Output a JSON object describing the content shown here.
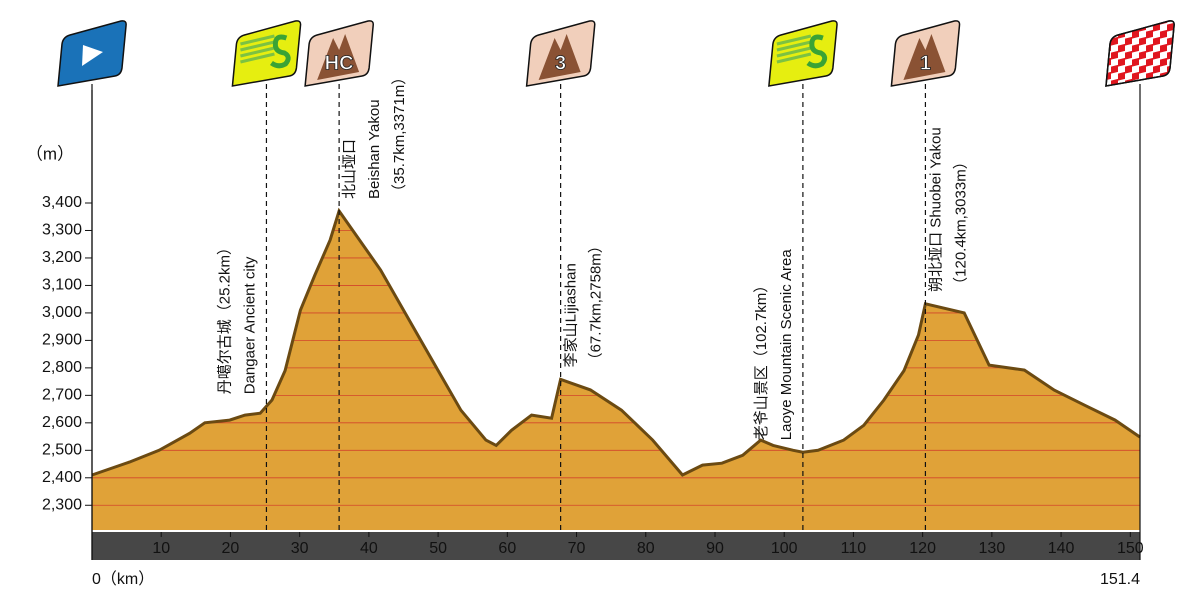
{
  "chart_data": {
    "type": "area",
    "y_label": "（m）",
    "color": "#e0a238",
    "line_color": "#6b4a12",
    "grid_color": "#d2452a",
    "xlim": [
      0,
      151.4
    ],
    "xticks": [
      {
        "value": 0,
        "label": "0（km）"
      },
      10,
      20,
      30,
      40,
      50,
      60,
      70,
      80,
      90,
      100,
      110,
      120,
      130,
      140,
      150,
      151.4
    ],
    "ylim": [
      2210,
      3400
    ],
    "yticks": [
      {
        "value": 2300,
        "label": "2,300"
      },
      {
        "value": 2400,
        "label": "2,400"
      },
      {
        "value": 2500,
        "label": "2,500"
      },
      {
        "value": 2600,
        "label": "2,600"
      },
      {
        "value": 2700,
        "label": "2,700"
      },
      {
        "value": 2800,
        "label": "2,800"
      },
      {
        "value": 2900,
        "label": "2,900"
      },
      {
        "value": 3000,
        "label": "3,000"
      },
      {
        "value": 3100,
        "label": "3,100"
      },
      {
        "value": 3200,
        "label": "3,200"
      },
      {
        "value": 3300,
        "label": "3,300"
      },
      {
        "value": 3400,
        "label": "3,400"
      }
    ],
    "grid": true,
    "x": [
      0,
      5.4,
      9.7,
      14.1,
      16.3,
      19.9,
      22.1,
      24.3,
      26,
      27.9,
      30.1,
      32.2,
      34.4,
      35.7,
      41.7,
      47.5,
      53.3,
      56.9,
      58.4,
      60.6,
      63.5,
      66.4,
      67.7,
      72,
      76.5,
      81,
      85.3,
      88.2,
      91,
      94,
      96.6,
      98.4,
      101.3,
      102.7,
      104.9,
      108.6,
      111.5,
      114.4,
      117.3,
      119.4,
      120.4,
      126,
      129.6,
      134.7,
      139,
      143.4,
      147.8,
      151.4
    ],
    "values": [
      2410,
      2457,
      2500,
      2562,
      2600,
      2610,
      2628,
      2635,
      2683,
      2790,
      3010,
      3138,
      3265,
      3371,
      3156,
      2900,
      2646,
      2537,
      2518,
      2573,
      2628,
      2617,
      2758,
      2720,
      2646,
      2537,
      2410,
      2446,
      2453,
      2482,
      2537,
      2518,
      2500,
      2493,
      2500,
      2537,
      2591,
      2683,
      2790,
      2920,
      3033,
      3000,
      2810,
      2792,
      2719,
      2664,
      2610,
      2548
    ],
    "markers": [
      {
        "kind": "start",
        "x": 0
      },
      {
        "kind": "sprint",
        "x": 25.2,
        "lines": [
          "丹噶尔古城（25.2km）",
          "Dangaer Ancient city"
        ]
      },
      {
        "kind": "climb",
        "category": "HC",
        "x": 35.7,
        "lines": [
          "北山垭口",
          "Beishan Yakou",
          "（35.7km,3371m）"
        ]
      },
      {
        "kind": "climb",
        "category": "3",
        "x": 67.7,
        "lines": [
          "李家山Lijiashan",
          "（67.7km,2758m）"
        ]
      },
      {
        "kind": "sprint",
        "x": 102.7,
        "lines": [
          "老爷山景区（102.7km）",
          "Laoye Mountain Scenic Area"
        ]
      },
      {
        "kind": "climb",
        "category": "1",
        "x": 120.4,
        "lines": [
          "朔北垭口 Shuobei Yakou",
          "（120.4km,3033m）"
        ]
      },
      {
        "kind": "finish",
        "x": 151.4
      }
    ]
  }
}
